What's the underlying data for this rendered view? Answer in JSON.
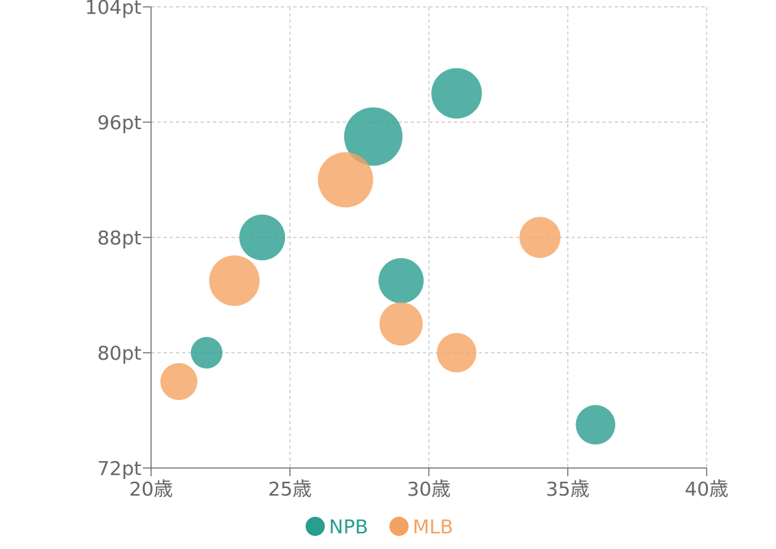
{
  "chart_data": {
    "type": "scatter",
    "title": "",
    "xlabel": "",
    "ylabel": "",
    "xlim": [
      20,
      40
    ],
    "ylim": [
      72,
      104
    ],
    "x_ticks": [
      20,
      25,
      30,
      35,
      40
    ],
    "y_ticks": [
      72,
      80,
      88,
      96,
      104
    ],
    "x_tick_labels": [
      "20歳",
      "25歳",
      "30歳",
      "35歳",
      "40歳"
    ],
    "y_tick_labels": [
      "72pt",
      "80pt",
      "88pt",
      "96pt",
      "104pt"
    ],
    "grid": true,
    "legend_position": "bottom-center",
    "series": [
      {
        "name": "NPB",
        "color": "#2a9d8f",
        "points": [
          {
            "x": 22,
            "y": 80,
            "size": 1.0
          },
          {
            "x": 24,
            "y": 88,
            "size": 1.45
          },
          {
            "x": 28,
            "y": 95,
            "size": 1.85
          },
          {
            "x": 29,
            "y": 85,
            "size": 1.43
          },
          {
            "x": 31,
            "y": 98,
            "size": 1.6
          },
          {
            "x": 36,
            "y": 75,
            "size": 1.25
          }
        ]
      },
      {
        "name": "MLB",
        "color": "#f4a261",
        "points": [
          {
            "x": 21,
            "y": 78,
            "size": 1.17
          },
          {
            "x": 23,
            "y": 85,
            "size": 1.6
          },
          {
            "x": 27,
            "y": 92,
            "size": 1.75
          },
          {
            "x": 29,
            "y": 82,
            "size": 1.37
          },
          {
            "x": 31,
            "y": 80,
            "size": 1.25
          },
          {
            "x": 34,
            "y": 88,
            "size": 1.3
          }
        ]
      }
    ]
  }
}
